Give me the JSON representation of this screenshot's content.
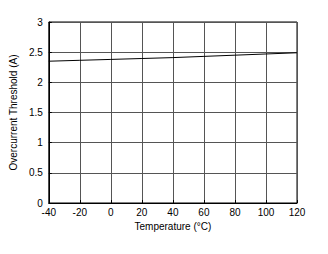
{
  "chart_data": {
    "type": "line",
    "x_label": "Temperature (°C)",
    "y_label": "Overcurrent Threshold (A)",
    "x": [
      -40,
      -20,
      0,
      20,
      40,
      60,
      80,
      100,
      120
    ],
    "values": [
      2.35,
      2.365,
      2.38,
      2.395,
      2.41,
      2.43,
      2.45,
      2.47,
      2.49
    ],
    "color": "#000000",
    "xlim": [
      -40,
      120
    ],
    "xticks": [
      -40,
      -20,
      0,
      20,
      40,
      60,
      80,
      100,
      120
    ],
    "ylim": [
      0,
      3
    ],
    "yticks": [
      0,
      0.5,
      1,
      1.5,
      2,
      2.5,
      3
    ],
    "grid": true
  }
}
